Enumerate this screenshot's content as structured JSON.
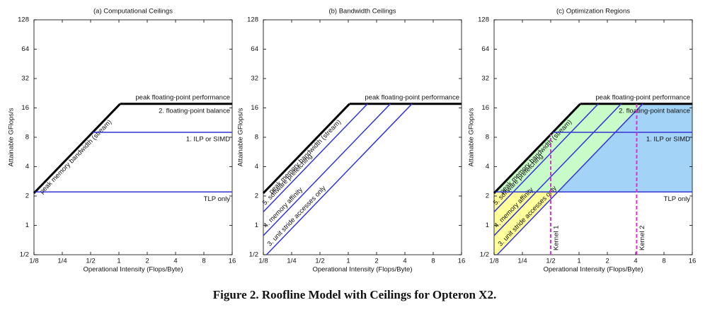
{
  "caption": "Figure 2. Roofline Model with Ceilings for Opteron X2.",
  "chart_data": [
    {
      "type": "line",
      "title": "(a) Computational Ceilings",
      "x_label": "Operational Intensity (Flops/Byte)",
      "y_label": "Attainable GFlops/s",
      "log_scale": true,
      "xlim": [
        0.125,
        16
      ],
      "xticks": [
        {
          "value": 0.125,
          "label": "1/8"
        },
        {
          "value": 0.25,
          "label": "1/4"
        },
        {
          "value": 0.5,
          "label": "1/2"
        },
        1,
        2,
        4,
        8,
        16
      ],
      "ylim": [
        0.5,
        128
      ],
      "yticks": [
        {
          "value": 0.5,
          "label": "1/2"
        },
        1,
        2,
        4,
        8,
        16,
        32,
        64,
        128
      ],
      "series": [
        {
          "name": "peak memory bandwidth (stream)",
          "color": "#000000",
          "x": [
            0.125,
            1.03
          ],
          "values": [
            2.14,
            17.6
          ]
        },
        {
          "name": "peak floating-point performance",
          "color": "#000000",
          "x": [
            1.03,
            16
          ],
          "values": [
            17.6,
            17.6
          ]
        },
        {
          "name": "1. ILP or SIMD",
          "color": "#3535d2",
          "x": [
            0.527,
            16
          ],
          "values": [
            9,
            9
          ]
        },
        {
          "name": "TLP only",
          "color": "#3535d2",
          "x": [
            0.129,
            16
          ],
          "values": [
            2.2,
            2.2
          ]
        }
      ],
      "annotations": [
        "2. floating-point balance"
      ]
    },
    {
      "type": "line",
      "title": "(b) Bandwidth Ceilings",
      "x_label": "Operational Intensity (Flops/Byte)",
      "y_label": "Attainable GFlops/s",
      "log_scale": true,
      "xlim": [
        0.125,
        16
      ],
      "xticks": [
        {
          "value": 0.125,
          "label": "1/8"
        },
        {
          "value": 0.25,
          "label": "1/4"
        },
        {
          "value": 0.5,
          "label": "1/2"
        },
        1,
        2,
        4,
        8,
        16
      ],
      "ylim": [
        0.5,
        128
      ],
      "yticks": [
        {
          "value": 0.5,
          "label": "1/2"
        },
        1,
        2,
        4,
        8,
        16,
        32,
        64,
        128
      ],
      "series": [
        {
          "name": "peak memory bandwidth (stream)",
          "color": "#000000",
          "x": [
            0.125,
            1.03
          ],
          "values": [
            2.14,
            17.6
          ]
        },
        {
          "name": "peak floating-point performance",
          "color": "#000000",
          "x": [
            1.03,
            16
          ],
          "values": [
            17.6,
            17.6
          ]
        },
        {
          "name": "5. software prefetching",
          "color": "#3535d2",
          "x": [
            0.125,
            1.6
          ],
          "values": [
            1.375,
            17.6
          ]
        },
        {
          "name": "4. memory affinity",
          "color": "#3535d2",
          "x": [
            0.125,
            2.8
          ],
          "values": [
            0.786,
            17.6
          ]
        },
        {
          "name": "3. unit stride accesses only",
          "color": "#3535d2",
          "x": [
            0.135,
            4.75
          ],
          "values": [
            0.5,
            17.6
          ]
        }
      ]
    },
    {
      "type": "line",
      "title": "(c) Optimization Regions",
      "x_label": "Operational Intensity (Flops/Byte)",
      "y_label": "Attainable GFlops/s",
      "log_scale": true,
      "shaded_regions": true,
      "xlim": [
        0.125,
        16
      ],
      "xticks": [
        {
          "value": 0.125,
          "label": "1/8"
        },
        {
          "value": 0.25,
          "label": "1/4"
        },
        {
          "value": 0.5,
          "label": "1/2"
        },
        1,
        2,
        4,
        8,
        16
      ],
      "ylim": [
        0.5,
        128
      ],
      "yticks": [
        {
          "value": 0.5,
          "label": "1/2"
        },
        1,
        2,
        4,
        8,
        16,
        32,
        64,
        128
      ],
      "series": [
        {
          "name": "peak memory bandwidth (stream)",
          "color": "#000000",
          "x": [
            0.125,
            1.03
          ],
          "values": [
            2.14,
            17.6
          ]
        },
        {
          "name": "peak floating-point performance",
          "color": "#000000",
          "x": [
            1.03,
            16
          ],
          "values": [
            17.6,
            17.6
          ]
        },
        {
          "name": "5. software prefetching",
          "color": "#3535d2",
          "x": [
            0.125,
            1.6
          ],
          "values": [
            1.375,
            17.6
          ]
        },
        {
          "name": "4. memory affinity",
          "color": "#3535d2",
          "x": [
            0.125,
            2.8
          ],
          "values": [
            0.786,
            17.6
          ]
        },
        {
          "name": "3. unit stride accesses only",
          "color": "#3535d2",
          "x": [
            0.135,
            4.75
          ],
          "values": [
            0.5,
            17.6
          ]
        },
        {
          "name": "1. ILP or SIMD",
          "color": "#3535d2",
          "x": [
            0.527,
            16
          ],
          "values": [
            9,
            9
          ]
        },
        {
          "name": "TLP only",
          "color": "#3535d2",
          "x": [
            0.129,
            16
          ],
          "values": [
            2.2,
            2.2
          ]
        }
      ],
      "annotations": [
        "2. floating-point balance"
      ],
      "kernels": [
        {
          "label": "Kernel 1",
          "x": 0.5,
          "color": "#e030d8"
        },
        {
          "label": "Kernel 2",
          "x": 4.1,
          "color": "#e030d8"
        }
      ]
    }
  ]
}
